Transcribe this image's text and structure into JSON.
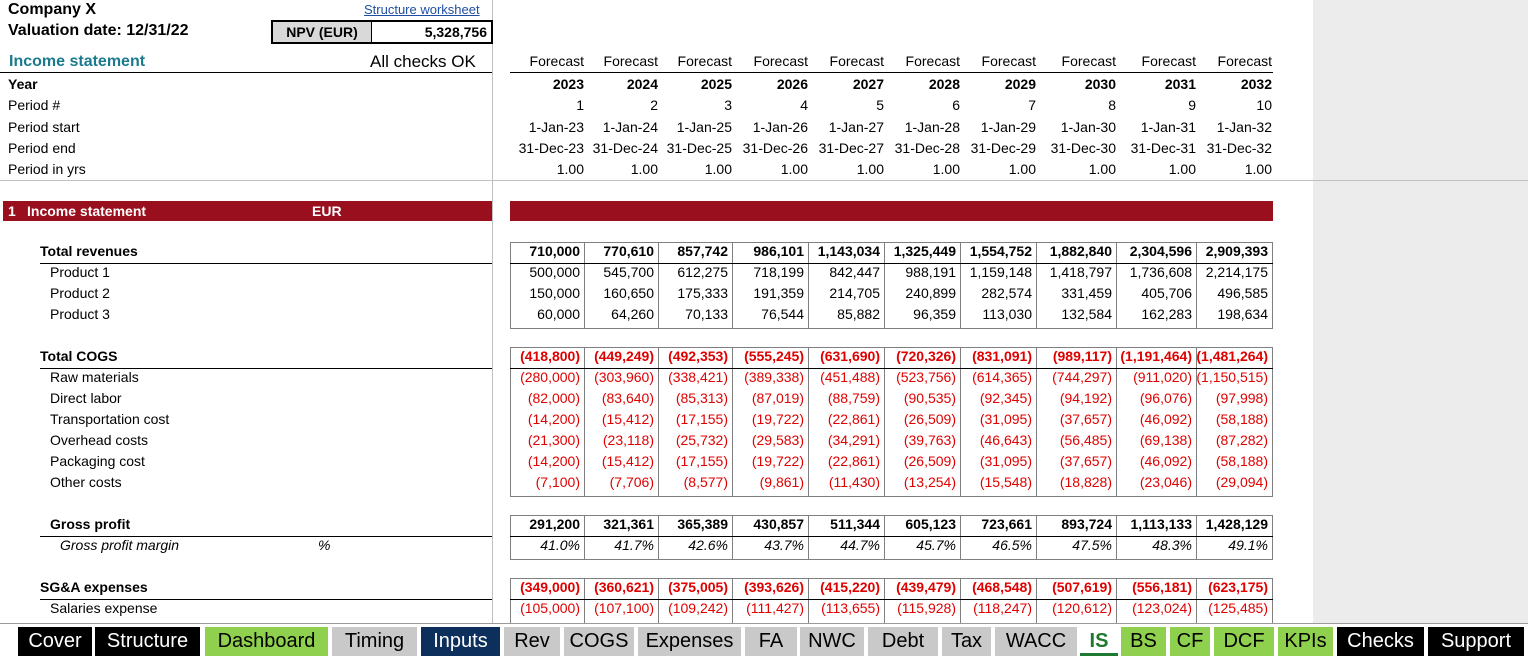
{
  "header": {
    "company": "Company X",
    "valuation_date": "Valuation date: 12/31/22",
    "structure_link": "Structure worksheet",
    "npv_label": "NPV (EUR)",
    "npv_value": "5,328,756",
    "section_title": "Income statement",
    "checks_status": "All checks OK"
  },
  "timeline": {
    "forecast_label": "Forecast",
    "rows": [
      {
        "label": "Year",
        "values": [
          "2023",
          "2024",
          "2025",
          "2026",
          "2027",
          "2028",
          "2029",
          "2030",
          "2031",
          "2032"
        ]
      },
      {
        "label": "Period #",
        "values": [
          "1",
          "2",
          "3",
          "4",
          "5",
          "6",
          "7",
          "8",
          "9",
          "10"
        ]
      },
      {
        "label": "Period start",
        "values": [
          "1-Jan-23",
          "1-Jan-24",
          "1-Jan-25",
          "1-Jan-26",
          "1-Jan-27",
          "1-Jan-28",
          "1-Jan-29",
          "1-Jan-30",
          "1-Jan-31",
          "1-Jan-32"
        ]
      },
      {
        "label": "Period end",
        "values": [
          "31-Dec-23",
          "31-Dec-24",
          "31-Dec-25",
          "31-Dec-26",
          "31-Dec-27",
          "31-Dec-28",
          "31-Dec-29",
          "31-Dec-30",
          "31-Dec-31",
          "31-Dec-32"
        ]
      },
      {
        "label": "Period in yrs",
        "values": [
          "1.00",
          "1.00",
          "1.00",
          "1.00",
          "1.00",
          "1.00",
          "1.00",
          "1.00",
          "1.00",
          "1.00"
        ]
      }
    ]
  },
  "section": {
    "number": "1",
    "title": "Income statement",
    "unit": "EUR"
  },
  "groups": [
    {
      "total": {
        "label": "Total revenues",
        "values": [
          "710,000",
          "770,610",
          "857,742",
          "986,101",
          "1,143,034",
          "1,325,449",
          "1,554,752",
          "1,882,840",
          "2,304,596",
          "2,909,393"
        ]
      },
      "items": [
        {
          "label": "Product 1",
          "values": [
            "500,000",
            "545,700",
            "612,275",
            "718,199",
            "842,447",
            "988,191",
            "1,159,148",
            "1,418,797",
            "1,736,608",
            "2,214,175"
          ]
        },
        {
          "label": "Product 2",
          "values": [
            "150,000",
            "160,650",
            "175,333",
            "191,359",
            "214,705",
            "240,899",
            "282,574",
            "331,459",
            "405,706",
            "496,585"
          ]
        },
        {
          "label": "Product 3",
          "values": [
            "60,000",
            "64,260",
            "70,133",
            "76,544",
            "85,882",
            "96,359",
            "113,030",
            "132,584",
            "162,283",
            "198,634"
          ]
        }
      ]
    },
    {
      "total": {
        "label": "Total COGS",
        "values": [
          "(418,800)",
          "(449,249)",
          "(492,353)",
          "(555,245)",
          "(631,690)",
          "(720,326)",
          "(831,091)",
          "(989,117)",
          "(1,191,464)",
          "(1,481,264)"
        ]
      },
      "items": [
        {
          "label": "Raw materials",
          "values": [
            "(280,000)",
            "(303,960)",
            "(338,421)",
            "(389,338)",
            "(451,488)",
            "(523,756)",
            "(614,365)",
            "(744,297)",
            "(911,020)",
            "(1,150,515)"
          ]
        },
        {
          "label": "Direct labor",
          "values": [
            "(82,000)",
            "(83,640)",
            "(85,313)",
            "(87,019)",
            "(88,759)",
            "(90,535)",
            "(92,345)",
            "(94,192)",
            "(96,076)",
            "(97,998)"
          ]
        },
        {
          "label": "Transportation cost",
          "values": [
            "(14,200)",
            "(15,412)",
            "(17,155)",
            "(19,722)",
            "(22,861)",
            "(26,509)",
            "(31,095)",
            "(37,657)",
            "(46,092)",
            "(58,188)"
          ]
        },
        {
          "label": "Overhead costs",
          "values": [
            "(21,300)",
            "(23,118)",
            "(25,732)",
            "(29,583)",
            "(34,291)",
            "(39,763)",
            "(46,643)",
            "(56,485)",
            "(69,138)",
            "(87,282)"
          ]
        },
        {
          "label": "Packaging cost",
          "values": [
            "(14,200)",
            "(15,412)",
            "(17,155)",
            "(19,722)",
            "(22,861)",
            "(26,509)",
            "(31,095)",
            "(37,657)",
            "(46,092)",
            "(58,188)"
          ]
        },
        {
          "label": "Other costs",
          "values": [
            "(7,100)",
            "(7,706)",
            "(8,577)",
            "(9,861)",
            "(11,430)",
            "(13,254)",
            "(15,548)",
            "(18,828)",
            "(23,046)",
            "(29,094)"
          ]
        }
      ]
    },
    {
      "total": {
        "label": "Gross profit",
        "values": [
          "291,200",
          "321,361",
          "365,389",
          "430,857",
          "511,344",
          "605,123",
          "723,661",
          "893,724",
          "1,113,133",
          "1,428,129"
        ]
      },
      "items": [
        {
          "label": "Gross profit margin",
          "unit": "%",
          "values": [
            "41.0%",
            "41.7%",
            "42.6%",
            "43.7%",
            "44.7%",
            "45.7%",
            "46.5%",
            "47.5%",
            "48.3%",
            "49.1%"
          ]
        }
      ]
    },
    {
      "total": {
        "label": "SG&A expenses",
        "values": [
          "(349,000)",
          "(360,621)",
          "(375,005)",
          "(393,626)",
          "(415,220)",
          "(439,479)",
          "(468,548)",
          "(507,619)",
          "(556,181)",
          "(623,175)"
        ]
      },
      "items": [
        {
          "label": "Salaries expense",
          "values": [
            "(105,000)",
            "(107,100)",
            "(109,242)",
            "(111,427)",
            "(113,655)",
            "(115,928)",
            "(118,247)",
            "(120,612)",
            "(123,024)",
            "(125,485)"
          ]
        }
      ]
    }
  ],
  "tabs": [
    {
      "label": "Cover",
      "style": "black"
    },
    {
      "label": "Structure",
      "style": "black"
    },
    {
      "label": "Dashboard",
      "style": "green"
    },
    {
      "label": "Timing",
      "style": "grey"
    },
    {
      "label": "Inputs",
      "style": "navy"
    },
    {
      "label": "Rev",
      "style": "grey"
    },
    {
      "label": "COGS",
      "style": "grey"
    },
    {
      "label": "Expenses",
      "style": "grey"
    },
    {
      "label": "FA",
      "style": "grey"
    },
    {
      "label": "NWC",
      "style": "grey"
    },
    {
      "label": "Debt",
      "style": "grey"
    },
    {
      "label": "Tax",
      "style": "grey"
    },
    {
      "label": "WACC",
      "style": "grey"
    },
    {
      "label": "IS",
      "style": "active"
    },
    {
      "label": "BS",
      "style": "green"
    },
    {
      "label": "CF",
      "style": "green"
    },
    {
      "label": "DCF",
      "style": "green"
    },
    {
      "label": "KPIs",
      "style": "green"
    },
    {
      "label": "Checks",
      "style": "black"
    },
    {
      "label": "Support",
      "style": "black"
    }
  ]
}
